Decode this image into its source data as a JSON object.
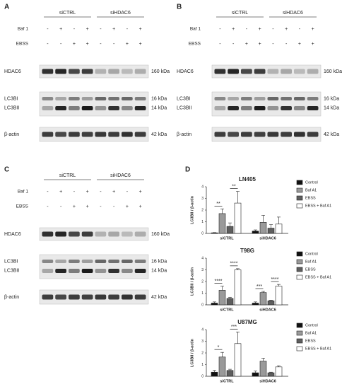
{
  "panels": [
    {
      "letter": "A",
      "groups": [
        "siCTRL",
        "siHDAC6"
      ],
      "rows": [
        {
          "label": "Baf 1",
          "signs": [
            "-",
            "+",
            "-",
            "+",
            "-",
            "+",
            "-",
            "+"
          ]
        },
        {
          "label": "EBSS",
          "signs": [
            "-",
            "-",
            "+",
            "+",
            "-",
            "-",
            "+",
            "+"
          ]
        }
      ],
      "blots": [
        {
          "labels": [
            "HDAC6"
          ],
          "sizes": [
            "160 kDa"
          ]
        },
        {
          "labels": [
            "LC3BI",
            "LC3BII"
          ],
          "sizes": [
            "16 kDa",
            "14 kDa"
          ]
        },
        {
          "labels": [
            "β-actin"
          ],
          "sizes": [
            "42 kDa"
          ]
        }
      ]
    },
    {
      "letter": "B",
      "groups": [
        "siCTRL",
        "siHDAC6"
      ],
      "rows": [
        {
          "label": "Baf 1",
          "signs": [
            "-",
            "+",
            "-",
            "+",
            "-",
            "+",
            "-",
            "+"
          ]
        },
        {
          "label": "EBSS",
          "signs": [
            "-",
            "-",
            "+",
            "+",
            "-",
            "-",
            "+",
            "+"
          ]
        }
      ],
      "blots": [
        {
          "labels": [
            "HDAC6"
          ],
          "sizes": [
            "160 kDa"
          ]
        },
        {
          "labels": [
            "LC3BI",
            "LC3BII"
          ],
          "sizes": [
            "16 kDa",
            "14 kDa"
          ]
        },
        {
          "labels": [
            "β-actin"
          ],
          "sizes": [
            "42 kDa"
          ]
        }
      ]
    },
    {
      "letter": "C",
      "groups": [
        "siCTRL",
        "siHDAC6"
      ],
      "rows": [
        {
          "label": "Baf 1",
          "signs": [
            "-",
            "+",
            "-",
            "+",
            "-",
            "+",
            "-",
            "+"
          ]
        },
        {
          "label": "EBSS",
          "signs": [
            "-",
            "-",
            "+",
            "+",
            "-",
            "-",
            "+",
            "+"
          ]
        }
      ],
      "blots": [
        {
          "labels": [
            "HDAC6"
          ],
          "sizes": [
            "160 kDa"
          ]
        },
        {
          "labels": [
            "LC3BI",
            "LC3BII"
          ],
          "sizes": [
            "16 kDa",
            "14 kDa"
          ]
        },
        {
          "labels": [
            "β-actin"
          ],
          "sizes": [
            "42 kDa"
          ]
        }
      ]
    }
  ],
  "panel_d": {
    "letter": "D"
  },
  "chart_data": [
    {
      "type": "bar",
      "title": "LN405",
      "y_label": "LC3BII / β-actin",
      "categories": [
        "siCTRL",
        "siHDAC6"
      ],
      "ylim": [
        0,
        4
      ],
      "yticks": [
        0,
        1,
        2,
        3,
        4
      ],
      "series": [
        {
          "name": "Control",
          "color": "#111111",
          "values": [
            0.05,
            0.2
          ],
          "errors": [
            0.02,
            0.1
          ]
        },
        {
          "name": "Baf A1",
          "color": "#9a9a9a",
          "values": [
            1.7,
            0.95
          ],
          "errors": [
            0.4,
            0.6
          ]
        },
        {
          "name": "EBSS",
          "color": "#5e5e5e",
          "values": [
            0.6,
            0.45
          ],
          "errors": [
            0.3,
            0.3
          ]
        },
        {
          "name": "EBSS + Baf A1",
          "color": "#ffffff",
          "values": [
            2.6,
            0.8
          ],
          "errors": [
            1.0,
            0.6
          ]
        }
      ],
      "annotations": [
        "**",
        "**"
      ]
    },
    {
      "type": "bar",
      "title": "T98G",
      "y_label": "LC3BII / β-actin",
      "categories": [
        "siCTRL",
        "siHDAC6"
      ],
      "ylim": [
        0,
        4
      ],
      "yticks": [
        0,
        1,
        2,
        3,
        4
      ],
      "series": [
        {
          "name": "Control",
          "color": "#111111",
          "values": [
            0.15,
            0.15
          ],
          "errors": [
            0.1,
            0.1
          ]
        },
        {
          "name": "Baf A1",
          "color": "#9a9a9a",
          "values": [
            1.25,
            1.05
          ],
          "errors": [
            0.35,
            0.1
          ]
        },
        {
          "name": "EBSS",
          "color": "#5e5e5e",
          "values": [
            0.55,
            0.35
          ],
          "errors": [
            0.1,
            0.05
          ]
        },
        {
          "name": "EBSS + Baf A1",
          "color": "#ffffff",
          "values": [
            3.0,
            1.6
          ],
          "errors": [
            0.1,
            0.15
          ]
        }
      ],
      "annotations": [
        "****",
        "****",
        "***",
        "****"
      ]
    },
    {
      "type": "bar",
      "title": "U87MG",
      "y_label": "LC3BII / β-actin",
      "categories": [
        "siCTRL",
        "siHDAC6"
      ],
      "ylim": [
        0,
        4
      ],
      "yticks": [
        0,
        1,
        2,
        3,
        4
      ],
      "series": [
        {
          "name": "Control",
          "color": "#111111",
          "values": [
            0.35,
            0.3
          ],
          "errors": [
            0.15,
            0.15
          ]
        },
        {
          "name": "Baf A1",
          "color": "#9a9a9a",
          "values": [
            1.65,
            1.3
          ],
          "errors": [
            0.4,
            0.25
          ]
        },
        {
          "name": "EBSS",
          "color": "#5e5e5e",
          "values": [
            0.5,
            0.3
          ],
          "errors": [
            0.1,
            0.05
          ]
        },
        {
          "name": "EBSS + Baf A1",
          "color": "#ffffff",
          "values": [
            2.8,
            0.8
          ],
          "errors": [
            1.0,
            0.1
          ]
        }
      ],
      "annotations": [
        "*",
        "***"
      ]
    }
  ]
}
